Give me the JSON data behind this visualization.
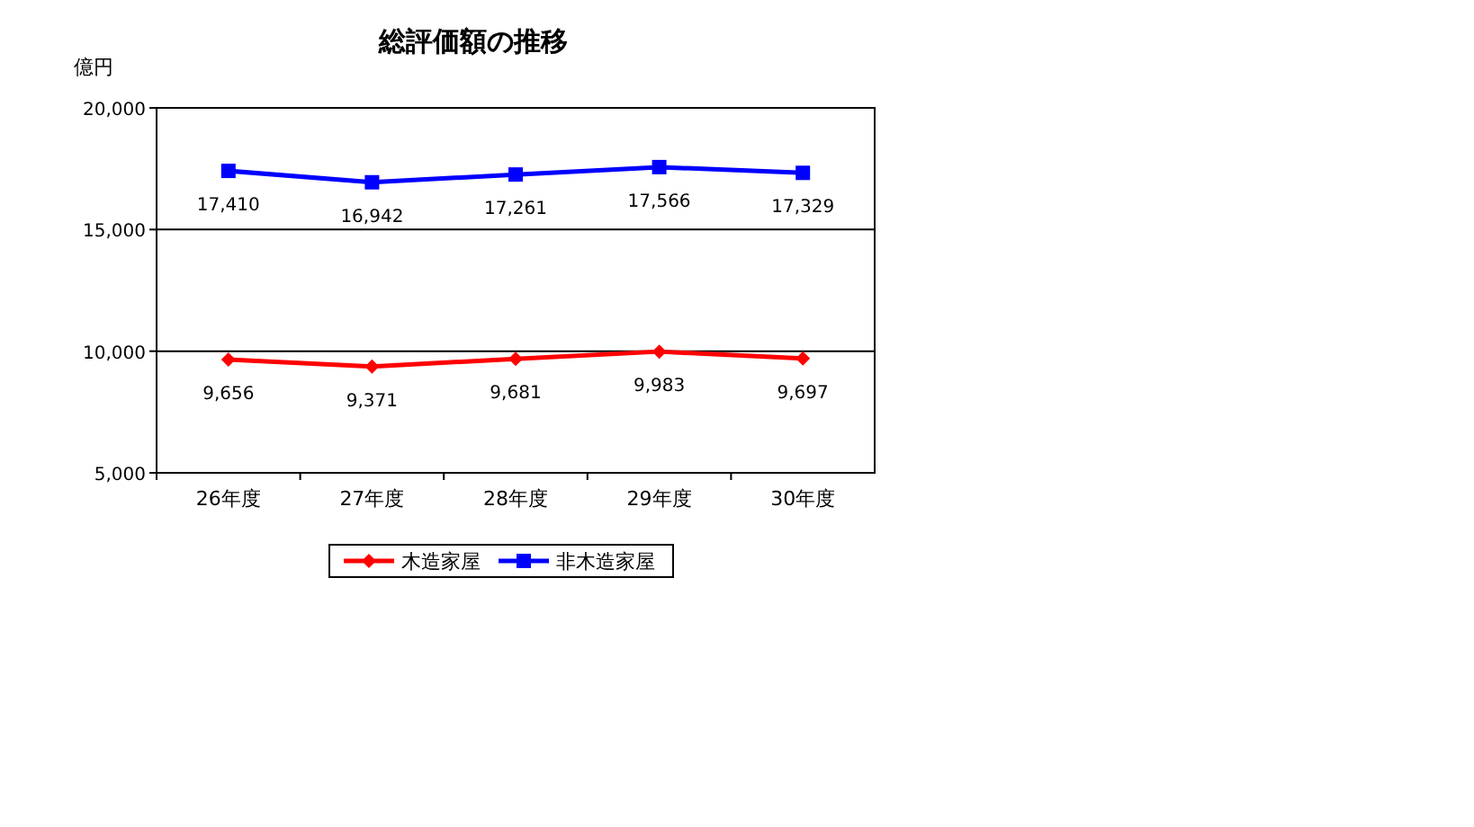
{
  "chart_data": {
    "type": "line",
    "title": "総評価額の推移",
    "ylabel": "億円",
    "categories": [
      "26年度",
      "27年度",
      "28年度",
      "29年度",
      "30年度"
    ],
    "series": [
      {
        "name": "木造家屋",
        "color": "#ff0000",
        "marker": "diamond",
        "values": [
          9656,
          9371,
          9681,
          9983,
          9697
        ],
        "value_labels": [
          "9,656",
          "9,371",
          "9,681",
          "9,983",
          "9,697"
        ]
      },
      {
        "name": "非木造家屋",
        "color": "#0000ff",
        "marker": "square",
        "values": [
          17410,
          16942,
          17261,
          17566,
          17329
        ],
        "value_labels": [
          "17,410",
          "16,942",
          "17,261",
          "17,566",
          "17,329"
        ]
      }
    ],
    "ylim": [
      5000,
      20000
    ],
    "yticks": [
      {
        "value": 5000,
        "label": "5,000"
      },
      {
        "value": 10000,
        "label": "10,000"
      },
      {
        "value": 15000,
        "label": "15,000"
      },
      {
        "value": 20000,
        "label": "20,000"
      }
    ],
    "grid": "y",
    "legend": "bottom",
    "line_style": "solid"
  }
}
